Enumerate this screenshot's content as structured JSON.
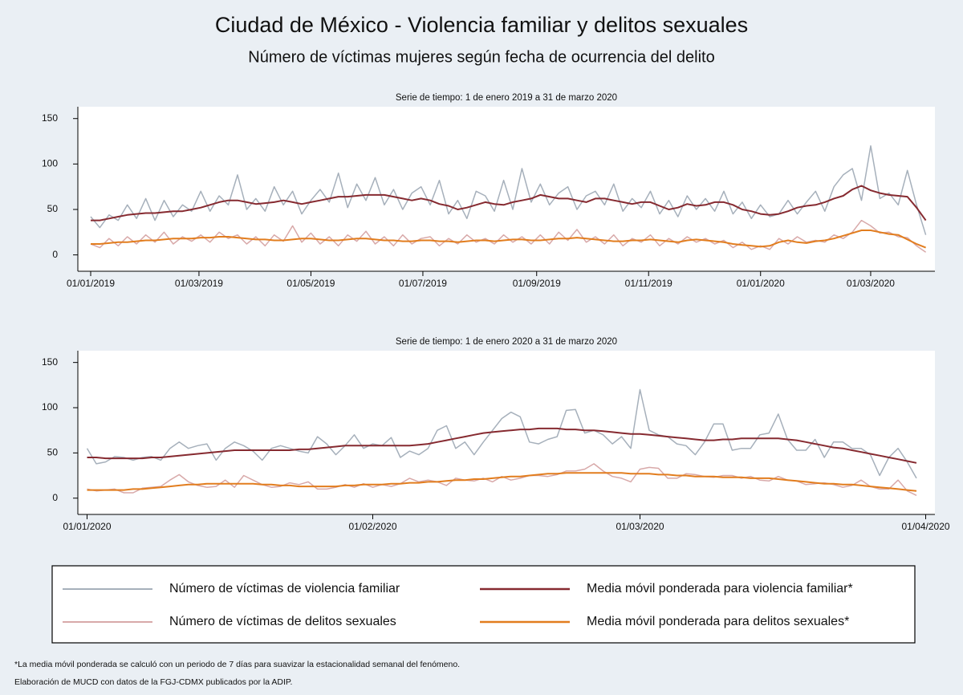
{
  "header": {
    "title": "Ciudad de México - Violencia familiar y delitos sexuales",
    "subtitle": "Número de víctimas mujeres según fecha de ocurrencia del delito"
  },
  "notes": [
    "*La media móvil ponderada se calculó con un periodo de 7 días para suavizar la estacionalidad semanal del fenómeno.",
    "Elaboración de MUCD con datos de la FGJ-CDMX publicados por la ADIP."
  ],
  "chart_data": [
    {
      "type": "line",
      "title": "Serie de tiempo: 1 de enero 2019 a 31 de marzo 2020",
      "x": [
        "2019-01-01",
        "2019-01-06",
        "2019-01-11",
        "2019-01-16",
        "2019-01-21",
        "2019-01-26",
        "2019-01-31",
        "2019-02-05",
        "2019-02-10",
        "2019-02-15",
        "2019-02-20",
        "2019-02-25",
        "2019-03-02",
        "2019-03-07",
        "2019-03-12",
        "2019-03-17",
        "2019-03-22",
        "2019-03-27",
        "2019-04-01",
        "2019-04-06",
        "2019-04-11",
        "2019-04-16",
        "2019-04-21",
        "2019-04-26",
        "2019-05-01",
        "2019-05-06",
        "2019-05-11",
        "2019-05-16",
        "2019-05-21",
        "2019-05-26",
        "2019-05-31",
        "2019-06-05",
        "2019-06-10",
        "2019-06-15",
        "2019-06-20",
        "2019-06-25",
        "2019-06-30",
        "2019-07-05",
        "2019-07-10",
        "2019-07-15",
        "2019-07-20",
        "2019-07-25",
        "2019-07-30",
        "2019-08-04",
        "2019-08-09",
        "2019-08-14",
        "2019-08-19",
        "2019-08-24",
        "2019-08-29",
        "2019-09-03",
        "2019-09-08",
        "2019-09-13",
        "2019-09-18",
        "2019-09-23",
        "2019-09-28",
        "2019-10-03",
        "2019-10-08",
        "2019-10-13",
        "2019-10-18",
        "2019-10-23",
        "2019-10-28",
        "2019-11-02",
        "2019-11-07",
        "2019-11-12",
        "2019-11-17",
        "2019-11-22",
        "2019-11-27",
        "2019-12-02",
        "2019-12-07",
        "2019-12-12",
        "2019-12-17",
        "2019-12-22",
        "2019-12-27",
        "2020-01-01",
        "2020-01-06",
        "2020-01-11",
        "2020-01-16",
        "2020-01-21",
        "2020-01-26",
        "2020-01-31",
        "2020-02-05",
        "2020-02-10",
        "2020-02-15",
        "2020-02-20",
        "2020-02-25",
        "2020-03-01",
        "2020-03-06",
        "2020-03-11",
        "2020-03-16",
        "2020-03-21",
        "2020-03-26",
        "2020-03-31"
      ],
      "series": [
        {
          "name": "Número de víctimas de violencia familiar",
          "color": "#a6b0bb",
          "width": 1.5,
          "values": [
            42,
            30,
            44,
            38,
            55,
            40,
            62,
            38,
            60,
            42,
            55,
            48,
            70,
            48,
            65,
            55,
            88,
            50,
            62,
            48,
            75,
            55,
            70,
            45,
            60,
            72,
            58,
            90,
            52,
            78,
            60,
            85,
            55,
            72,
            50,
            68,
            75,
            55,
            82,
            45,
            60,
            40,
            70,
            65,
            48,
            82,
            50,
            95,
            58,
            78,
            55,
            68,
            75,
            50,
            65,
            70,
            55,
            78,
            48,
            62,
            52,
            70,
            45,
            60,
            42,
            65,
            50,
            62,
            48,
            70,
            45,
            58,
            40,
            55,
            42,
            45,
            60,
            45,
            58,
            70,
            48,
            75,
            88,
            95,
            60,
            120,
            62,
            68,
            55,
            93,
            55,
            22
          ]
        },
        {
          "name": "Media móvil ponderada para violencia familiar*",
          "color": "#862a30",
          "width": 2,
          "values": [
            38,
            38,
            40,
            42,
            44,
            45,
            46,
            46,
            47,
            48,
            48,
            50,
            52,
            55,
            58,
            60,
            60,
            58,
            56,
            57,
            58,
            60,
            58,
            56,
            58,
            60,
            62,
            64,
            64,
            65,
            66,
            66,
            66,
            64,
            62,
            60,
            62,
            60,
            56,
            54,
            50,
            52,
            55,
            58,
            56,
            55,
            58,
            60,
            62,
            66,
            64,
            62,
            62,
            60,
            58,
            62,
            62,
            60,
            58,
            56,
            58,
            58,
            54,
            50,
            52,
            56,
            54,
            55,
            58,
            58,
            55,
            50,
            48,
            45,
            44,
            45,
            48,
            52,
            54,
            55,
            58,
            62,
            65,
            72,
            76,
            71,
            68,
            66,
            65,
            64,
            52,
            38
          ]
        },
        {
          "name": "Número de víctimas de delitos sexuales",
          "color": "#d8a9a9",
          "width": 1.5,
          "values": [
            12,
            8,
            18,
            10,
            20,
            12,
            22,
            14,
            25,
            12,
            20,
            15,
            22,
            14,
            25,
            18,
            22,
            12,
            20,
            10,
            22,
            15,
            32,
            14,
            24,
            12,
            20,
            10,
            22,
            15,
            26,
            12,
            20,
            10,
            22,
            12,
            18,
            20,
            10,
            18,
            12,
            22,
            14,
            18,
            12,
            22,
            14,
            20,
            12,
            22,
            12,
            25,
            16,
            28,
            14,
            20,
            12,
            22,
            10,
            18,
            14,
            22,
            10,
            18,
            12,
            20,
            14,
            18,
            12,
            16,
            8,
            14,
            6,
            10,
            6,
            18,
            12,
            20,
            14,
            16,
            14,
            22,
            18,
            25,
            38,
            32,
            24,
            25,
            20,
            19,
            10,
            3
          ]
        },
        {
          "name": "Media móvil ponderada para delitos sexuales*",
          "color": "#e27d1e",
          "width": 2,
          "values": [
            12,
            12,
            13,
            14,
            14,
            15,
            16,
            16,
            17,
            18,
            18,
            18,
            19,
            19,
            20,
            20,
            19,
            18,
            17,
            17,
            16,
            16,
            17,
            18,
            18,
            17,
            16,
            16,
            17,
            18,
            18,
            17,
            16,
            16,
            15,
            15,
            16,
            16,
            15,
            15,
            14,
            15,
            16,
            16,
            15,
            16,
            17,
            17,
            16,
            16,
            17,
            18,
            18,
            19,
            18,
            17,
            16,
            15,
            15,
            16,
            16,
            17,
            16,
            15,
            14,
            16,
            17,
            16,
            15,
            14,
            12,
            11,
            10,
            9,
            10,
            14,
            16,
            14,
            13,
            15,
            16,
            18,
            21,
            24,
            27,
            27,
            25,
            23,
            22,
            17,
            12,
            8
          ]
        }
      ],
      "xlim": [
        "2018-12-25",
        "2020-04-05"
      ],
      "ylim": [
        -18,
        163
      ],
      "yticks": [
        0,
        50,
        100,
        150
      ],
      "xticks": [
        {
          "value": "2019-01-01",
          "label": "01/01/2019"
        },
        {
          "value": "2019-03-01",
          "label": "01/03/2019"
        },
        {
          "value": "2019-05-01",
          "label": "01/05/2019"
        },
        {
          "value": "2019-07-01",
          "label": "01/07/2019"
        },
        {
          "value": "2019-09-01",
          "label": "01/09/2019"
        },
        {
          "value": "2019-11-01",
          "label": "01/11/2019"
        },
        {
          "value": "2020-01-01",
          "label": "01/01/2020"
        },
        {
          "value": "2020-03-01",
          "label": "01/03/2020"
        }
      ]
    },
    {
      "type": "line",
      "title": "Serie de tiempo: 1 de enero 2020 a 31 de marzo 2020",
      "x": [
        "2020-01-01",
        "2020-01-02",
        "2020-01-03",
        "2020-01-04",
        "2020-01-05",
        "2020-01-06",
        "2020-01-07",
        "2020-01-08",
        "2020-01-09",
        "2020-01-10",
        "2020-01-11",
        "2020-01-12",
        "2020-01-13",
        "2020-01-14",
        "2020-01-15",
        "2020-01-16",
        "2020-01-17",
        "2020-01-18",
        "2020-01-19",
        "2020-01-20",
        "2020-01-21",
        "2020-01-22",
        "2020-01-23",
        "2020-01-24",
        "2020-01-25",
        "2020-01-26",
        "2020-01-27",
        "2020-01-28",
        "2020-01-29",
        "2020-01-30",
        "2020-01-31",
        "2020-02-01",
        "2020-02-02",
        "2020-02-03",
        "2020-02-04",
        "2020-02-05",
        "2020-02-06",
        "2020-02-07",
        "2020-02-08",
        "2020-02-09",
        "2020-02-10",
        "2020-02-11",
        "2020-02-12",
        "2020-02-13",
        "2020-02-14",
        "2020-02-15",
        "2020-02-16",
        "2020-02-17",
        "2020-02-18",
        "2020-02-19",
        "2020-02-20",
        "2020-02-21",
        "2020-02-22",
        "2020-02-23",
        "2020-02-24",
        "2020-02-25",
        "2020-02-26",
        "2020-02-27",
        "2020-02-28",
        "2020-02-29",
        "2020-03-01",
        "2020-03-02",
        "2020-03-03",
        "2020-03-04",
        "2020-03-05",
        "2020-03-06",
        "2020-03-07",
        "2020-03-08",
        "2020-03-09",
        "2020-03-10",
        "2020-03-11",
        "2020-03-12",
        "2020-03-13",
        "2020-03-14",
        "2020-03-15",
        "2020-03-16",
        "2020-03-17",
        "2020-03-18",
        "2020-03-19",
        "2020-03-20",
        "2020-03-21",
        "2020-03-22",
        "2020-03-23",
        "2020-03-24",
        "2020-03-25",
        "2020-03-26",
        "2020-03-27",
        "2020-03-28",
        "2020-03-29",
        "2020-03-30",
        "2020-03-31"
      ],
      "series": [
        {
          "name": "Número de víctimas de violencia familiar",
          "color": "#a6b0bb",
          "width": 1.5,
          "values": [
            55,
            38,
            40,
            46,
            45,
            42,
            45,
            46,
            42,
            55,
            62,
            55,
            58,
            60,
            42,
            55,
            62,
            58,
            52,
            42,
            55,
            58,
            55,
            52,
            50,
            68,
            60,
            48,
            58,
            70,
            55,
            60,
            58,
            67,
            45,
            52,
            48,
            55,
            75,
            80,
            55,
            62,
            48,
            62,
            75,
            88,
            95,
            90,
            62,
            60,
            65,
            68,
            97,
            98,
            72,
            75,
            70,
            60,
            68,
            55,
            120,
            75,
            70,
            68,
            60,
            58,
            48,
            62,
            82,
            82,
            53,
            55,
            55,
            70,
            72,
            93,
            65,
            53,
            53,
            65,
            45,
            62,
            62,
            55,
            55,
            48,
            25,
            45,
            55,
            40,
            22
          ]
        },
        {
          "name": "Media móvil ponderada para violencia familiar*",
          "color": "#862a30",
          "width": 2,
          "values": [
            45,
            45,
            44,
            44,
            44,
            44,
            44,
            45,
            45,
            46,
            47,
            48,
            49,
            50,
            51,
            52,
            53,
            53,
            53,
            53,
            53,
            53,
            53,
            54,
            54,
            55,
            56,
            57,
            58,
            58,
            58,
            58,
            58,
            58,
            58,
            58,
            59,
            60,
            62,
            64,
            66,
            68,
            70,
            72,
            73,
            74,
            75,
            76,
            76,
            77,
            77,
            77,
            76,
            76,
            75,
            75,
            74,
            73,
            72,
            71,
            71,
            70,
            69,
            68,
            67,
            66,
            65,
            64,
            64,
            65,
            65,
            66,
            66,
            66,
            66,
            66,
            65,
            64,
            62,
            60,
            58,
            56,
            55,
            53,
            51,
            49,
            47,
            45,
            43,
            41,
            39
          ]
        },
        {
          "name": "Número de víctimas de delitos sexuales",
          "color": "#d8a9a9",
          "width": 1.5,
          "values": [
            10,
            8,
            9,
            10,
            6,
            6,
            11,
            12,
            13,
            20,
            26,
            18,
            14,
            12,
            13,
            20,
            12,
            25,
            20,
            15,
            12,
            13,
            17,
            15,
            18,
            10,
            10,
            12,
            15,
            12,
            16,
            12,
            15,
            13,
            16,
            22,
            18,
            20,
            18,
            14,
            22,
            20,
            19,
            22,
            18,
            24,
            20,
            22,
            25,
            25,
            24,
            26,
            30,
            30,
            32,
            38,
            30,
            24,
            22,
            18,
            32,
            34,
            33,
            22,
            22,
            27,
            26,
            24,
            23,
            25,
            25,
            22,
            24,
            20,
            19,
            24,
            20,
            19,
            15,
            16,
            17,
            15,
            12,
            14,
            20,
            13,
            10,
            10,
            20,
            8,
            3
          ]
        },
        {
          "name": "Media móvil ponderada para delitos sexuales*",
          "color": "#e27d1e",
          "width": 2,
          "values": [
            9,
            9,
            9,
            9,
            9,
            10,
            10,
            11,
            12,
            13,
            14,
            15,
            15,
            16,
            16,
            16,
            16,
            16,
            16,
            15,
            15,
            14,
            14,
            13,
            13,
            13,
            13,
            13,
            14,
            14,
            15,
            15,
            15,
            16,
            16,
            17,
            17,
            18,
            18,
            19,
            20,
            20,
            21,
            21,
            22,
            23,
            24,
            24,
            25,
            26,
            27,
            27,
            28,
            28,
            28,
            28,
            28,
            28,
            28,
            27,
            27,
            27,
            26,
            26,
            25,
            25,
            24,
            24,
            24,
            23,
            23,
            23,
            22,
            22,
            22,
            21,
            20,
            19,
            18,
            17,
            16,
            16,
            15,
            15,
            14,
            13,
            12,
            11,
            10,
            9,
            8
          ]
        }
      ],
      "xlim": [
        "2019-12-31",
        "2020-04-02"
      ],
      "ylim": [
        -18,
        163
      ],
      "yticks": [
        0,
        50,
        100,
        150
      ],
      "xticks": [
        {
          "value": "2020-01-01",
          "label": "01/01/2020"
        },
        {
          "value": "2020-02-01",
          "label": "01/02/2020"
        },
        {
          "value": "2020-03-01",
          "label": "01/03/2020"
        },
        {
          "value": "2020-04-01",
          "label": "01/04/2020"
        }
      ]
    }
  ]
}
